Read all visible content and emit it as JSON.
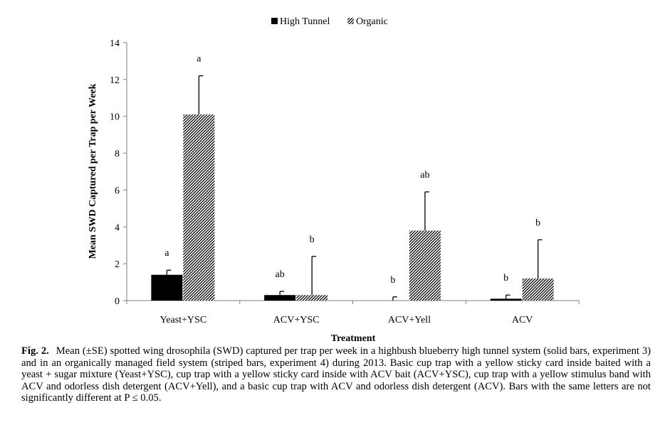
{
  "chart_data": {
    "type": "bar",
    "title": "",
    "xlabel": "Treatment",
    "ylabel": "Mean SWD Captured per Trap per Week",
    "ylim": [
      0,
      14
    ],
    "yticks": [
      "0",
      "2",
      "4",
      "6",
      "8",
      "10",
      "12",
      "14"
    ],
    "categories": [
      "Yeast+YSC",
      "ACV+YSC",
      "ACV+Yell",
      "ACV"
    ],
    "legend_position": "top-center",
    "grid": false,
    "series": [
      {
        "name": "High Tunnel",
        "fill": "solid",
        "color": "#000000",
        "values": [
          1.4,
          0.3,
          0.0,
          0.1
        ],
        "errors": [
          0.25,
          0.2,
          0.2,
          0.2
        ],
        "letters": [
          "a",
          "ab",
          "b",
          "b"
        ]
      },
      {
        "name": "Organic",
        "fill": "diagonal-hatch",
        "color": "#000000",
        "values": [
          10.1,
          0.3,
          3.8,
          1.2
        ],
        "errors": [
          2.1,
          2.1,
          2.1,
          2.1
        ],
        "letters": [
          "a",
          "b",
          "ab",
          "b"
        ]
      }
    ]
  },
  "caption": {
    "label": "Fig. 2.",
    "text": "Mean (±SE) spotted wing drosophila (SWD) captured per trap per week in a highbush blueberry high tunnel system (solid bars, experiment 3) and in an organically managed field system (striped bars, experiment 4) during 2013. Basic cup trap with a yellow sticky card inside baited with a yeast + sugar mixture (Yeast+YSC), cup trap with a yellow sticky card inside with ACV bait (ACV+YSC), cup trap with a yellow stimulus band with ACV and odorless dish detergent (ACV+Yell), and a basic cup trap with ACV and odorless dish detergent (ACV). Bars with the same letters are not significantly different at P ≤ 0.05."
  }
}
